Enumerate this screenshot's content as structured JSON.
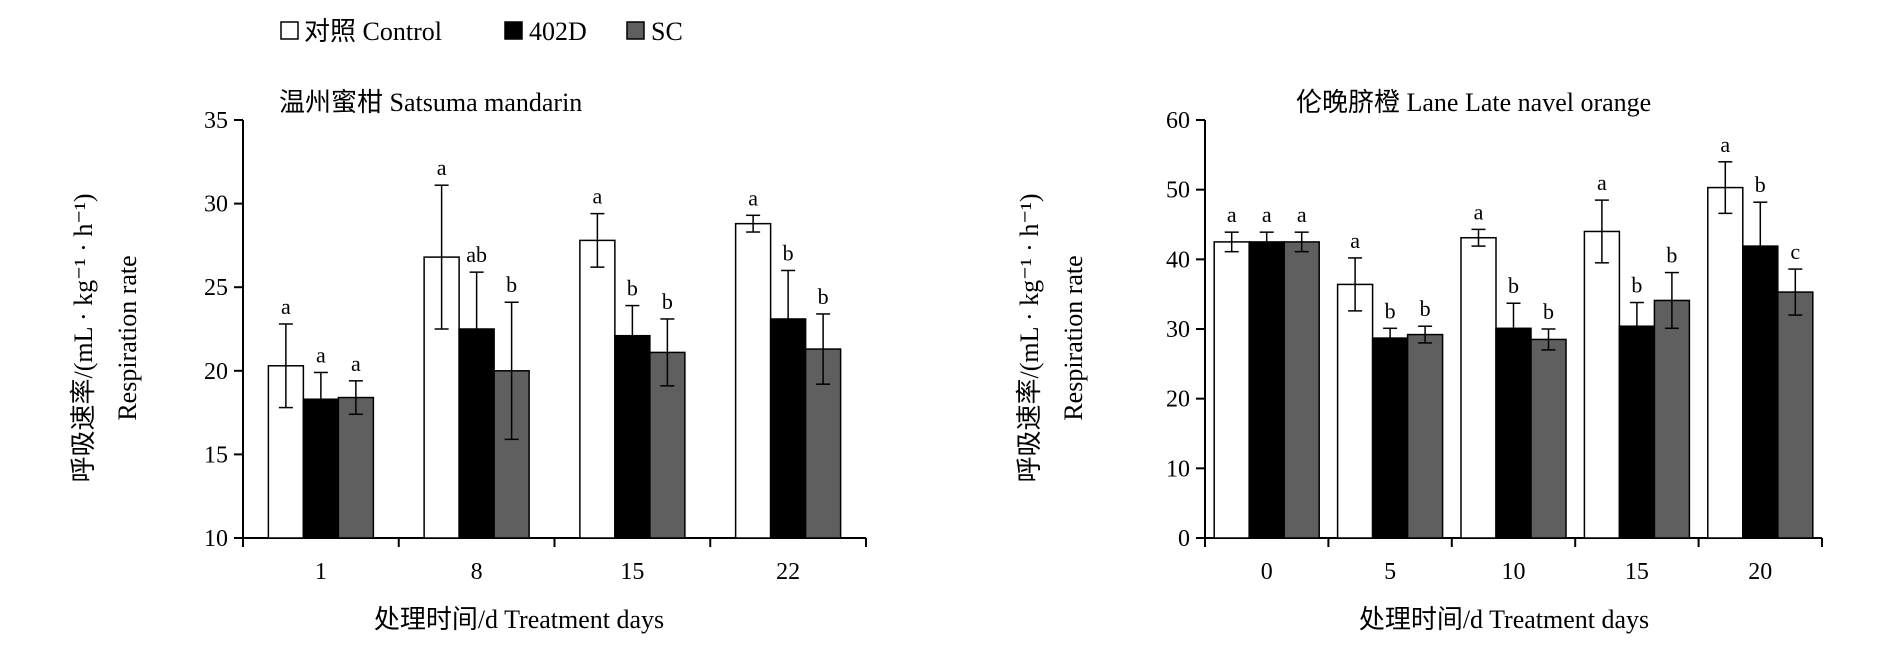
{
  "legend": {
    "items": [
      {
        "label": "对照 Control",
        "color": "#ffffff"
      },
      {
        "label": "402D",
        "color": "#000000"
      },
      {
        "label": "SC",
        "color": "#5f5f5f"
      }
    ]
  },
  "chart_data": [
    {
      "type": "bar",
      "title": "温州蜜柑  Satsuma mandarin",
      "xlabel": "处理时间/d  Treatment days",
      "ylabel_cn": "呼吸速率/(mL · kg⁻¹ · h⁻¹)",
      "ylabel_en": "Respiration rate",
      "categories": [
        "1",
        "8",
        "15",
        "22"
      ],
      "ylim": [
        10,
        35
      ],
      "yticks": [
        10,
        15,
        20,
        25,
        30,
        35
      ],
      "series": [
        {
          "name": "对照 Control",
          "values": [
            20.3,
            26.8,
            27.8,
            28.8
          ],
          "errors": [
            2.5,
            4.3,
            1.6,
            0.5
          ],
          "letters": [
            "a",
            "a",
            "a",
            "a"
          ]
        },
        {
          "name": "402D",
          "values": [
            18.3,
            22.5,
            22.1,
            23.1
          ],
          "errors": [
            1.6,
            3.4,
            1.8,
            2.9
          ],
          "letters": [
            "a",
            "ab",
            "b",
            "b"
          ]
        },
        {
          "name": "SC",
          "values": [
            18.4,
            20.0,
            21.1,
            21.3
          ],
          "errors": [
            1.0,
            4.1,
            2.0,
            2.1
          ],
          "letters": [
            "a",
            "b",
            "b",
            "b"
          ]
        }
      ]
    },
    {
      "type": "bar",
      "title": "伦晚脐橙  Lane Late navel orange",
      "xlabel": "处理时间/d  Treatment days",
      "ylabel_cn": "呼吸速率/(mL · kg⁻¹ · h⁻¹)",
      "ylabel_en": "Respiration rate",
      "categories": [
        "0",
        "5",
        "10",
        "15",
        "20"
      ],
      "ylim": [
        0,
        60
      ],
      "yticks": [
        0,
        10,
        20,
        30,
        40,
        50,
        60
      ],
      "series": [
        {
          "name": "对照 Control",
          "values": [
            42.5,
            36.4,
            43.1,
            44.0,
            50.3
          ],
          "errors": [
            1.4,
            3.8,
            1.2,
            4.5,
            3.7
          ],
          "letters": [
            "a",
            "a",
            "a",
            "a",
            "a"
          ]
        },
        {
          "name": "402D",
          "values": [
            42.5,
            28.7,
            30.1,
            30.4,
            41.9
          ],
          "errors": [
            1.4,
            1.4,
            3.6,
            3.4,
            6.3
          ],
          "letters": [
            "a",
            "b",
            "b",
            "b",
            "b"
          ]
        },
        {
          "name": "SC",
          "values": [
            42.5,
            29.2,
            28.5,
            34.1,
            35.3
          ],
          "errors": [
            1.4,
            1.2,
            1.5,
            4.0,
            3.3
          ],
          "letters": [
            "a",
            "b",
            "b",
            "b",
            "c"
          ]
        }
      ]
    }
  ]
}
